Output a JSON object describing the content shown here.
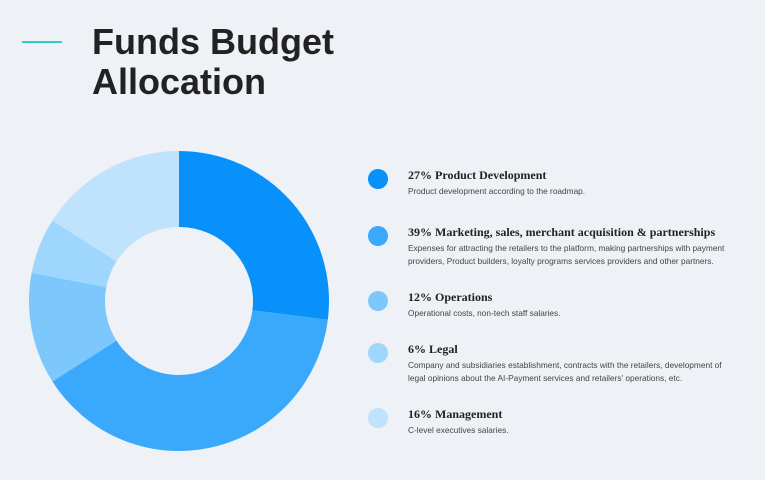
{
  "header": {
    "title_line1": "Funds Budget",
    "title_line2": "Allocation",
    "accent_color": "#2ad0c4"
  },
  "chart_data": {
    "type": "pie",
    "style": "donut",
    "title": "Funds Budget Allocation",
    "slices": [
      {
        "label": "Product Development",
        "percent_text": "27%",
        "value": 27,
        "color": "#0891fb",
        "legend_label": "27% Product Development",
        "description": "Product development according to the roadmap."
      },
      {
        "label": "Marketing, sales, merchant acquisition & partnerships",
        "percent_text": "39%",
        "value": 39,
        "color": "#3aa9fb",
        "legend_label": "39% Marketing, sales, merchant acquisition & partnerships",
        "description": "Expenses for attracting the retailers to the platform, making partnerships with payment providers, Product builders, loyalty programs services providers and other partners."
      },
      {
        "label": "Operations",
        "percent_text": "12%",
        "value": 12,
        "color": "#7cc8fd",
        "legend_label": "12% Operations",
        "description": "Operational costs, non-tech staff salaries."
      },
      {
        "label": "Legal",
        "percent_text": "6%",
        "value": 6,
        "color": "#9fd6fd",
        "legend_label": "6% Legal",
        "description": "Company and subsidiaries establishment, contracts with the retailers, development of legal opinions about the AI-Payment services and retailers' operations, etc."
      },
      {
        "label": "Management",
        "percent_text": "16%",
        "value": 16,
        "color": "#bfe2fd",
        "legend_label": "16% Management",
        "description": "C-level executives salaries."
      }
    ],
    "legend_position": "right"
  }
}
